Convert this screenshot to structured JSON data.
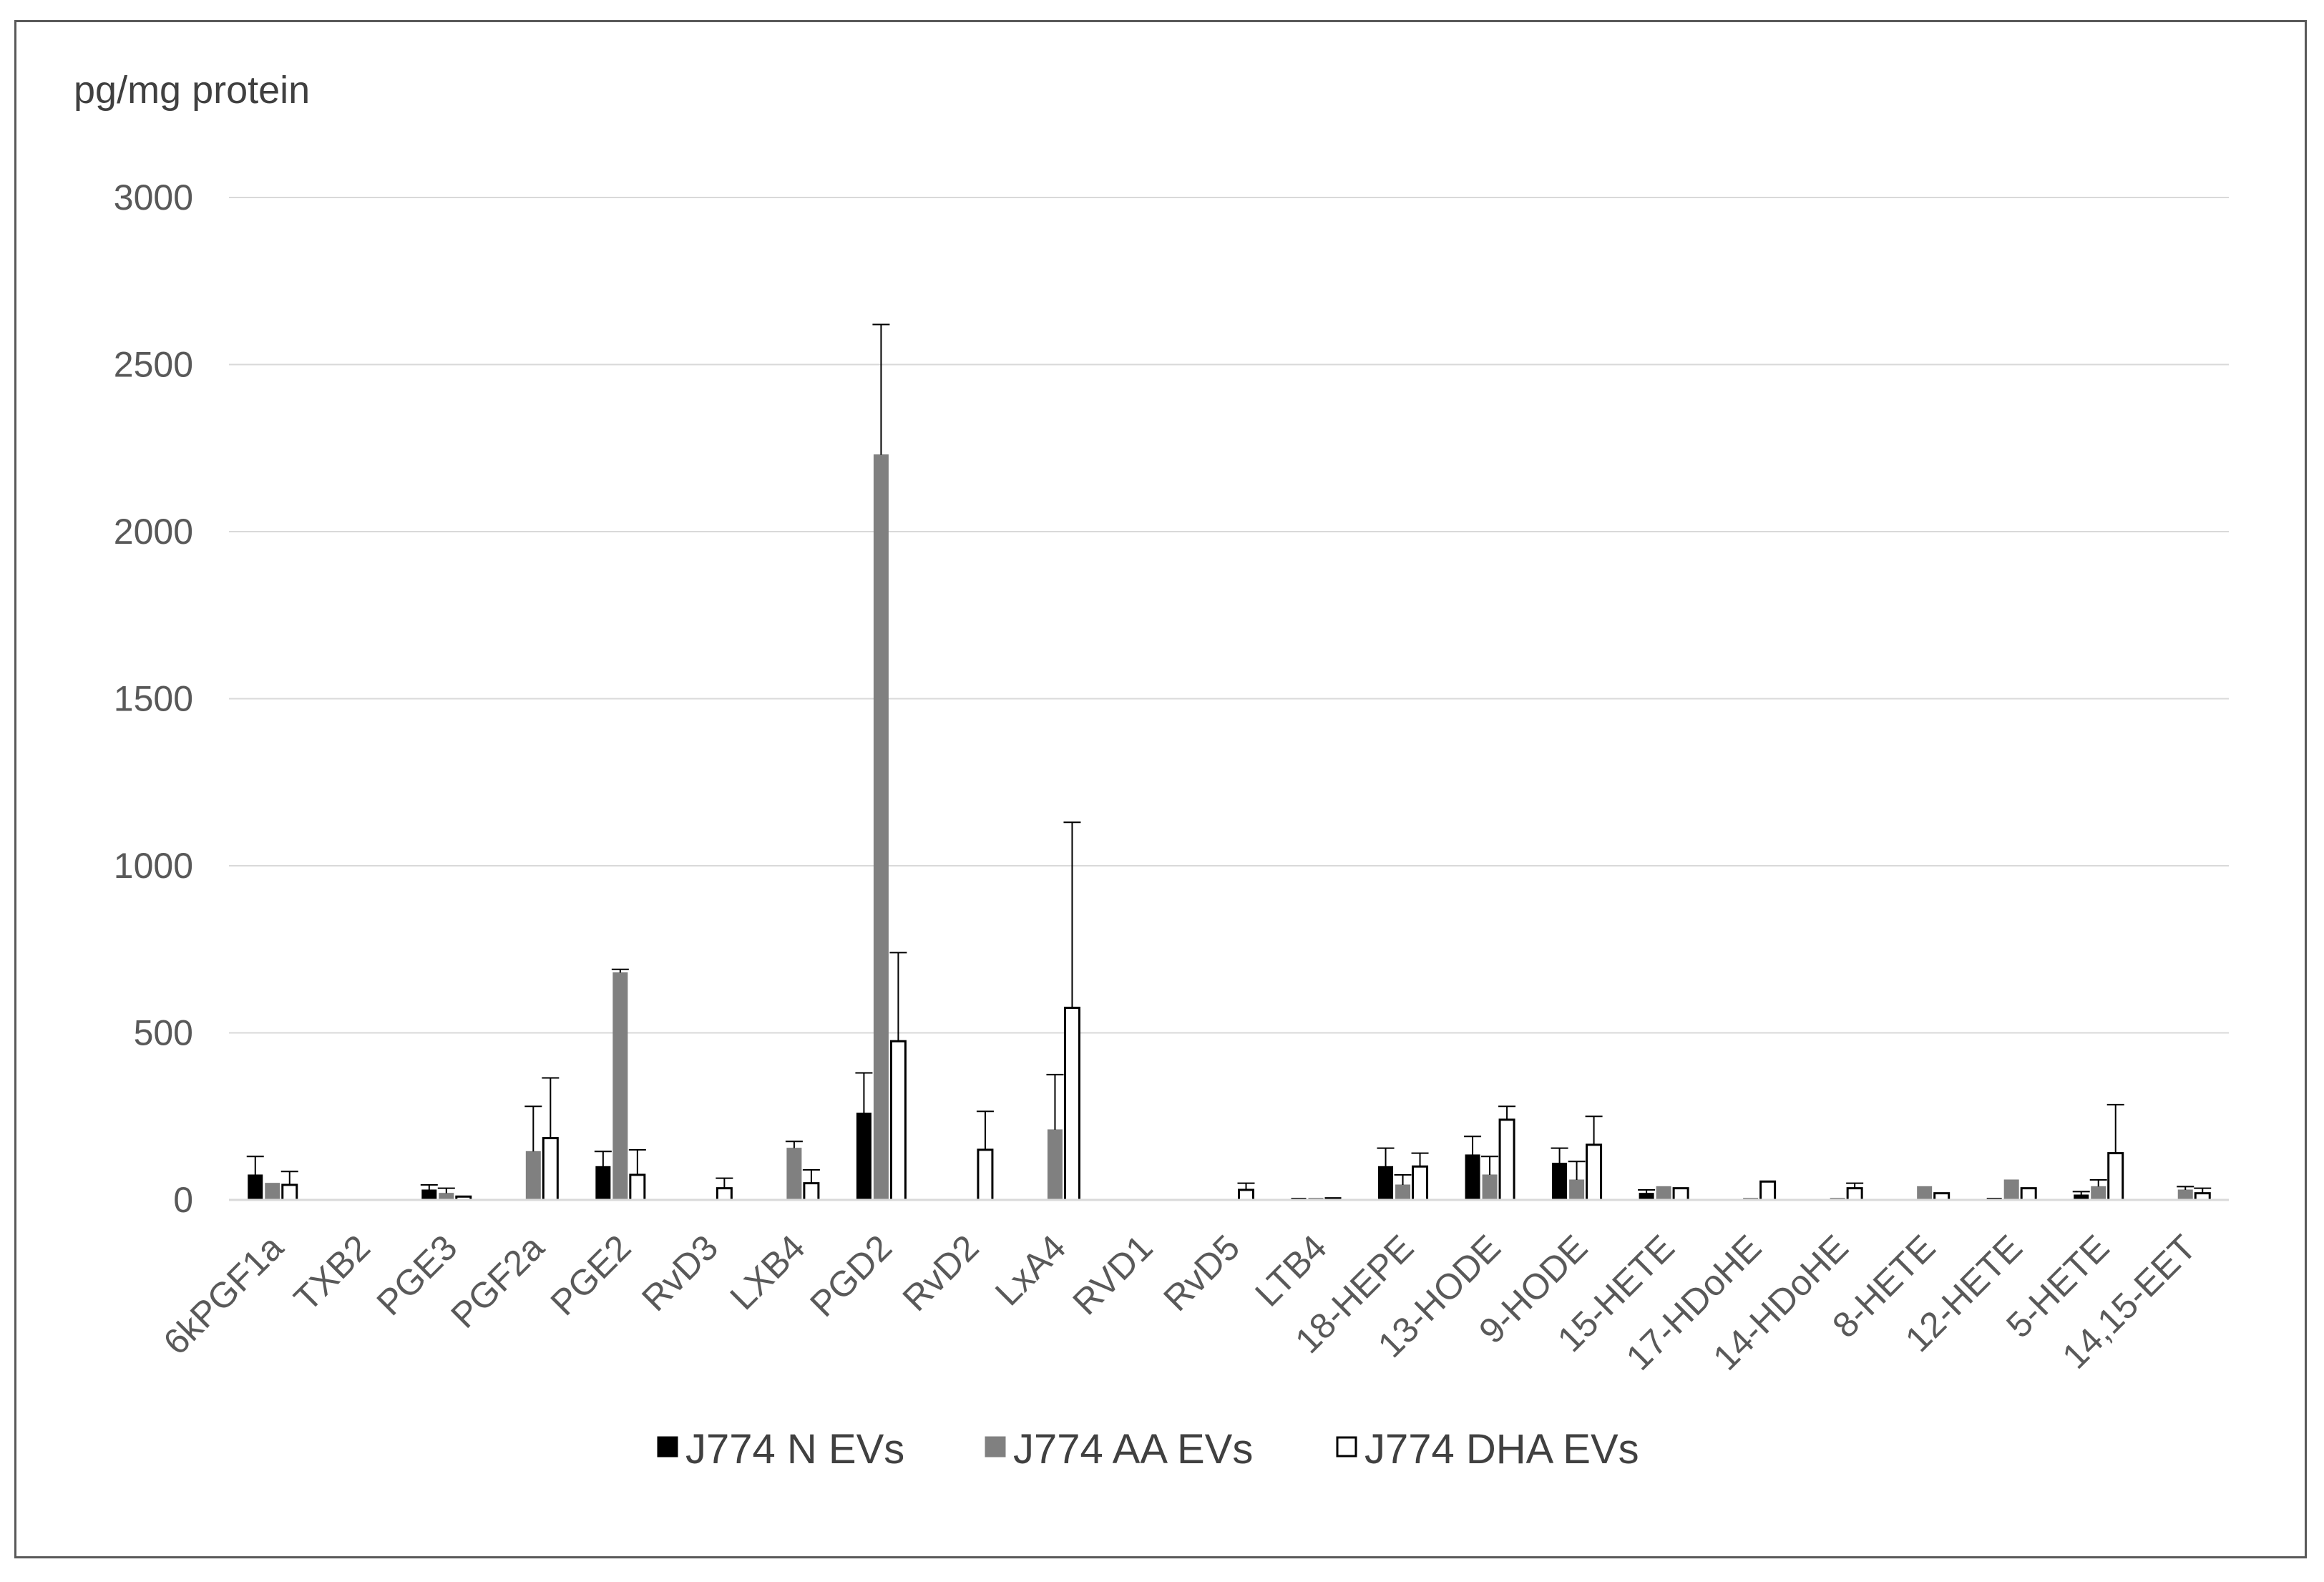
{
  "chart_data": {
    "type": "bar",
    "title": "",
    "xlabel": "",
    "ylabel": "pg/mg protein",
    "ylim": [
      0,
      3000
    ],
    "yticks": [
      0,
      500,
      1000,
      1500,
      2000,
      2500,
      3000
    ],
    "grid": true,
    "legend_position": "bottom",
    "categories": [
      "6kPGF1a",
      "TXB2",
      "PGE3",
      "PGF2a",
      "PGE2",
      "RvD3",
      "LXB4",
      "PGD2",
      "RvD2",
      "LxA4",
      "RVD1",
      "RvD5",
      "LTB4",
      "18-HEPE",
      "13-HODE",
      "9-HODE",
      "15-HETE",
      "17-HDoHE",
      "14-HDoHE",
      "8-HETE",
      "12-HETE",
      "5-HETE",
      "14,15-EET"
    ],
    "series": [
      {
        "name": "J774 N EVs",
        "color": "#000000",
        "values": [
          75,
          0,
          30,
          0,
          100,
          0,
          0,
          260,
          0,
          0,
          0,
          0,
          5,
          100,
          135,
          110,
          20,
          0,
          0,
          0,
          5,
          15,
          0
        ],
        "error": [
          55,
          0,
          15,
          0,
          45,
          0,
          0,
          120,
          0,
          0,
          0,
          0,
          0,
          55,
          55,
          45,
          10,
          0,
          0,
          0,
          0,
          10,
          0
        ]
      },
      {
        "name": "J774 AA EVs",
        "color": "#808080",
        "values": [
          50,
          0,
          20,
          145,
          680,
          0,
          155,
          2230,
          0,
          210,
          0,
          0,
          5,
          45,
          75,
          60,
          40,
          5,
          5,
          40,
          60,
          40,
          30
        ],
        "error": [
          0,
          0,
          15,
          135,
          10,
          0,
          20,
          390,
          0,
          165,
          0,
          0,
          0,
          30,
          55,
          55,
          0,
          0,
          0,
          0,
          0,
          20,
          10
        ]
      },
      {
        "name": "J774 DHA EVs",
        "color": "#ffffff",
        "values": [
          45,
          0,
          10,
          185,
          75,
          35,
          50,
          475,
          150,
          575,
          0,
          30,
          5,
          100,
          240,
          165,
          35,
          55,
          35,
          20,
          35,
          140,
          20
        ],
        "error": [
          40,
          0,
          0,
          180,
          75,
          30,
          40,
          265,
          115,
          555,
          0,
          20,
          0,
          40,
          40,
          85,
          0,
          0,
          15,
          0,
          0,
          145,
          15
        ]
      }
    ]
  }
}
